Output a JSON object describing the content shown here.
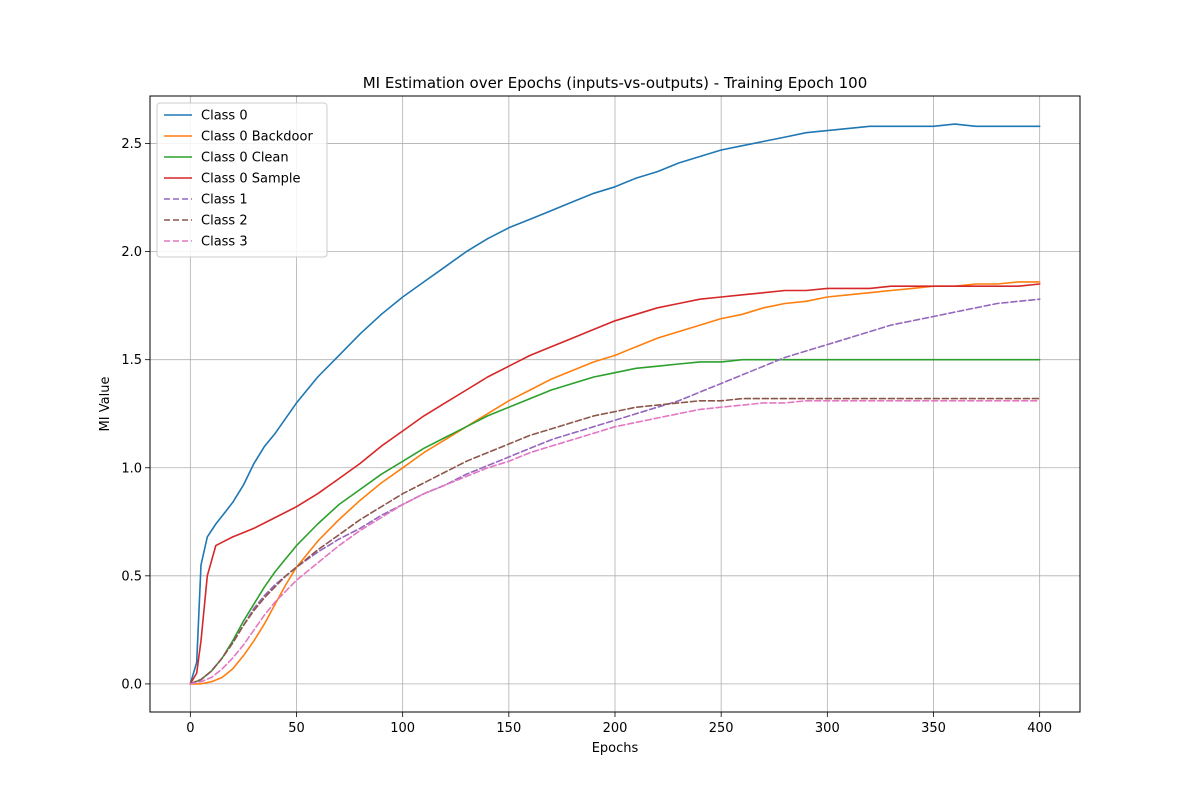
{
  "chart_data": {
    "type": "line",
    "title": "MI Estimation over Epochs (inputs-vs-outputs) - Training Epoch 100",
    "xlabel": "Epochs",
    "ylabel": "MI Value",
    "xlim": [
      -19,
      419
    ],
    "ylim": [
      -0.13,
      2.72
    ],
    "xticks": [
      0,
      50,
      100,
      150,
      200,
      250,
      300,
      350,
      400
    ],
    "yticks": [
      0.0,
      0.5,
      1.0,
      1.5,
      2.0,
      2.5
    ],
    "xtick_labels": [
      "0",
      "50",
      "100",
      "150",
      "200",
      "250",
      "300",
      "350",
      "400"
    ],
    "ytick_labels": [
      "0.0",
      "0.5",
      "1.0",
      "1.5",
      "2.0",
      "2.5"
    ],
    "grid": true,
    "legend_position": "upper left",
    "series": [
      {
        "name": "Class 0",
        "color": "#1f77b4",
        "dash": "solid",
        "x": [
          0,
          3,
          5,
          8,
          12,
          16,
          20,
          25,
          30,
          35,
          40,
          50,
          60,
          70,
          80,
          90,
          100,
          110,
          120,
          130,
          140,
          150,
          160,
          170,
          180,
          190,
          200,
          210,
          220,
          230,
          240,
          250,
          260,
          270,
          280,
          290,
          300,
          310,
          320,
          330,
          340,
          350,
          360,
          370,
          380,
          390,
          400
        ],
        "y": [
          0.0,
          0.1,
          0.55,
          0.68,
          0.74,
          0.79,
          0.84,
          0.92,
          1.02,
          1.1,
          1.16,
          1.3,
          1.42,
          1.52,
          1.62,
          1.71,
          1.79,
          1.86,
          1.93,
          2.0,
          2.06,
          2.11,
          2.15,
          2.19,
          2.23,
          2.27,
          2.3,
          2.34,
          2.37,
          2.41,
          2.44,
          2.47,
          2.49,
          2.51,
          2.53,
          2.55,
          2.56,
          2.57,
          2.58,
          2.58,
          2.58,
          2.58,
          2.59,
          2.58,
          2.58,
          2.58,
          2.58
        ]
      },
      {
        "name": "Class 0 Backdoor",
        "color": "#ff7f0e",
        "dash": "solid",
        "x": [
          0,
          5,
          10,
          15,
          20,
          25,
          30,
          35,
          40,
          45,
          50,
          60,
          70,
          80,
          90,
          100,
          110,
          120,
          130,
          140,
          150,
          160,
          170,
          180,
          190,
          200,
          210,
          220,
          230,
          240,
          250,
          260,
          270,
          280,
          290,
          300,
          310,
          320,
          330,
          340,
          350,
          360,
          370,
          380,
          390,
          400
        ],
        "y": [
          0.0,
          0.0,
          0.01,
          0.03,
          0.07,
          0.13,
          0.2,
          0.28,
          0.37,
          0.46,
          0.54,
          0.66,
          0.76,
          0.85,
          0.93,
          1.0,
          1.07,
          1.13,
          1.19,
          1.25,
          1.31,
          1.36,
          1.41,
          1.45,
          1.49,
          1.52,
          1.56,
          1.6,
          1.63,
          1.66,
          1.69,
          1.71,
          1.74,
          1.76,
          1.77,
          1.79,
          1.8,
          1.81,
          1.82,
          1.83,
          1.84,
          1.84,
          1.85,
          1.85,
          1.86,
          1.86
        ]
      },
      {
        "name": "Class 0 Clean",
        "color": "#2ca02c",
        "dash": "solid",
        "x": [
          0,
          5,
          10,
          15,
          20,
          25,
          30,
          35,
          40,
          45,
          50,
          60,
          70,
          80,
          90,
          100,
          110,
          120,
          130,
          140,
          150,
          160,
          170,
          180,
          190,
          200,
          210,
          220,
          230,
          240,
          250,
          260,
          270,
          280,
          290,
          300,
          310,
          320,
          330,
          340,
          350,
          360,
          370,
          380,
          390,
          400
        ],
        "y": [
          0.0,
          0.02,
          0.06,
          0.12,
          0.2,
          0.29,
          0.37,
          0.45,
          0.52,
          0.58,
          0.64,
          0.74,
          0.83,
          0.9,
          0.97,
          1.03,
          1.09,
          1.14,
          1.19,
          1.24,
          1.28,
          1.32,
          1.36,
          1.39,
          1.42,
          1.44,
          1.46,
          1.47,
          1.48,
          1.49,
          1.49,
          1.5,
          1.5,
          1.5,
          1.5,
          1.5,
          1.5,
          1.5,
          1.5,
          1.5,
          1.5,
          1.5,
          1.5,
          1.5,
          1.5,
          1.5
        ]
      },
      {
        "name": "Class 0 Sample",
        "color": "#d62728",
        "dash": "solid",
        "x": [
          0,
          3,
          5,
          8,
          12,
          16,
          20,
          25,
          30,
          40,
          50,
          60,
          70,
          80,
          90,
          100,
          110,
          120,
          130,
          140,
          150,
          160,
          170,
          180,
          190,
          200,
          210,
          220,
          230,
          240,
          250,
          260,
          270,
          280,
          290,
          300,
          310,
          320,
          330,
          340,
          350,
          360,
          370,
          380,
          390,
          400
        ],
        "y": [
          0.0,
          0.05,
          0.2,
          0.5,
          0.64,
          0.66,
          0.68,
          0.7,
          0.72,
          0.77,
          0.82,
          0.88,
          0.95,
          1.02,
          1.1,
          1.17,
          1.24,
          1.3,
          1.36,
          1.42,
          1.47,
          1.52,
          1.56,
          1.6,
          1.64,
          1.68,
          1.71,
          1.74,
          1.76,
          1.78,
          1.79,
          1.8,
          1.81,
          1.82,
          1.82,
          1.83,
          1.83,
          1.83,
          1.84,
          1.84,
          1.84,
          1.84,
          1.84,
          1.84,
          1.84,
          1.85
        ]
      },
      {
        "name": "Class 1",
        "color": "#9467bd",
        "dash": "dashed",
        "x": [
          0,
          5,
          10,
          15,
          20,
          25,
          30,
          35,
          40,
          45,
          50,
          60,
          70,
          80,
          90,
          100,
          110,
          120,
          130,
          140,
          150,
          160,
          170,
          180,
          190,
          200,
          210,
          220,
          230,
          240,
          250,
          260,
          270,
          280,
          290,
          300,
          310,
          320,
          330,
          340,
          350,
          360,
          370,
          380,
          390,
          400
        ],
        "y": [
          0.0,
          0.02,
          0.06,
          0.12,
          0.19,
          0.27,
          0.35,
          0.41,
          0.46,
          0.5,
          0.54,
          0.61,
          0.67,
          0.72,
          0.78,
          0.83,
          0.88,
          0.92,
          0.97,
          1.01,
          1.05,
          1.09,
          1.13,
          1.16,
          1.19,
          1.22,
          1.25,
          1.28,
          1.31,
          1.35,
          1.39,
          1.43,
          1.47,
          1.51,
          1.54,
          1.57,
          1.6,
          1.63,
          1.66,
          1.68,
          1.7,
          1.72,
          1.74,
          1.76,
          1.77,
          1.78
        ]
      },
      {
        "name": "Class 2",
        "color": "#8c564b",
        "dash": "dashed",
        "x": [
          0,
          5,
          10,
          15,
          20,
          25,
          30,
          35,
          40,
          45,
          50,
          60,
          70,
          80,
          90,
          100,
          110,
          120,
          130,
          140,
          150,
          160,
          170,
          180,
          190,
          200,
          210,
          220,
          230,
          240,
          250,
          260,
          270,
          280,
          290,
          300,
          310,
          320,
          330,
          340,
          350,
          360,
          370,
          380,
          390,
          400
        ],
        "y": [
          0.0,
          0.02,
          0.06,
          0.12,
          0.19,
          0.27,
          0.34,
          0.4,
          0.45,
          0.5,
          0.54,
          0.62,
          0.69,
          0.76,
          0.82,
          0.88,
          0.93,
          0.98,
          1.03,
          1.07,
          1.11,
          1.15,
          1.18,
          1.21,
          1.24,
          1.26,
          1.28,
          1.29,
          1.3,
          1.31,
          1.31,
          1.32,
          1.32,
          1.32,
          1.32,
          1.32,
          1.32,
          1.32,
          1.32,
          1.32,
          1.32,
          1.32,
          1.32,
          1.32,
          1.32,
          1.32
        ]
      },
      {
        "name": "Class 3",
        "color": "#e377c2",
        "dash": "dashed",
        "x": [
          0,
          5,
          10,
          15,
          20,
          25,
          30,
          35,
          40,
          45,
          50,
          60,
          70,
          80,
          90,
          100,
          110,
          120,
          130,
          140,
          150,
          160,
          170,
          180,
          190,
          200,
          210,
          220,
          230,
          240,
          250,
          260,
          270,
          280,
          290,
          300,
          310,
          320,
          330,
          340,
          350,
          360,
          370,
          380,
          390,
          400
        ],
        "y": [
          0.0,
          0.01,
          0.03,
          0.07,
          0.12,
          0.18,
          0.25,
          0.32,
          0.38,
          0.43,
          0.48,
          0.56,
          0.64,
          0.71,
          0.77,
          0.83,
          0.88,
          0.92,
          0.96,
          1.0,
          1.03,
          1.07,
          1.1,
          1.13,
          1.16,
          1.19,
          1.21,
          1.23,
          1.25,
          1.27,
          1.28,
          1.29,
          1.3,
          1.3,
          1.31,
          1.31,
          1.31,
          1.31,
          1.31,
          1.31,
          1.31,
          1.31,
          1.31,
          1.31,
          1.31,
          1.31
        ]
      }
    ]
  }
}
